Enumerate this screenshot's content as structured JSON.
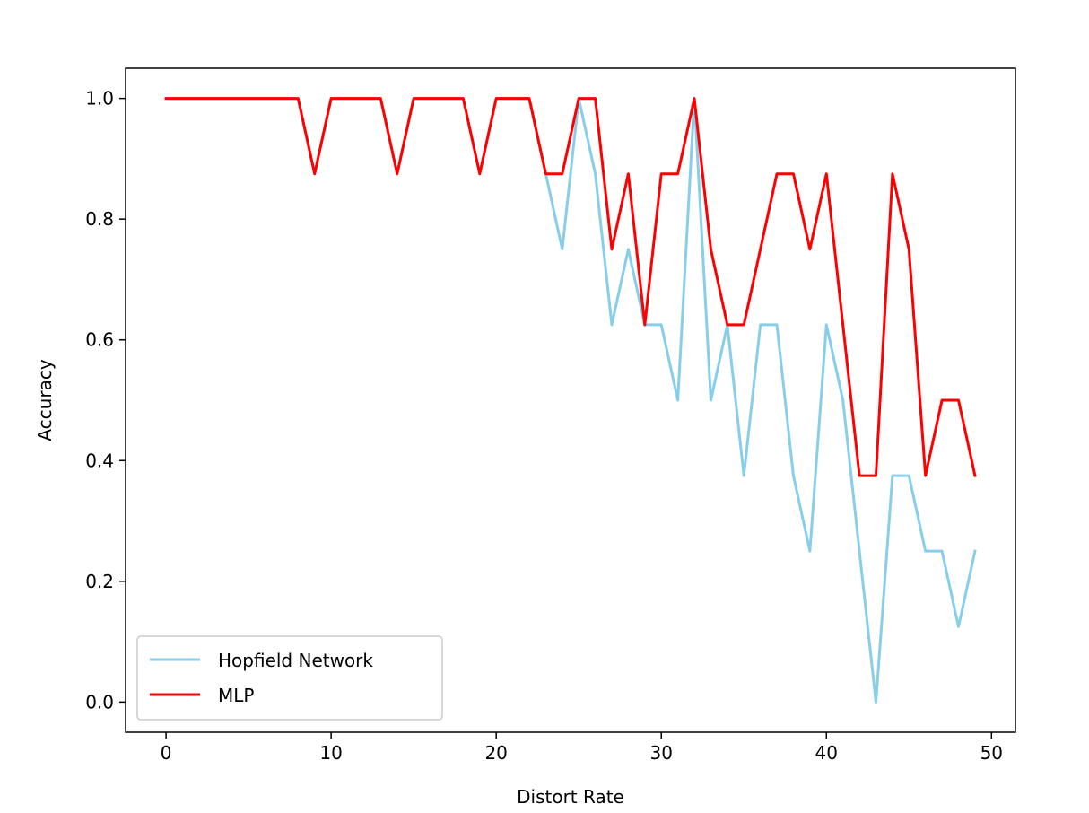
{
  "chart_data": {
    "type": "line",
    "xlabel": "Distort Rate",
    "ylabel": "Accuracy",
    "xlim": [
      -2.45,
      51.45
    ],
    "ylim": [
      -0.05,
      1.05
    ],
    "xticks": [
      0,
      10,
      20,
      30,
      40,
      50
    ],
    "yticks": [
      0.0,
      0.2,
      0.4,
      0.6,
      0.8,
      1.0
    ],
    "xtick_labels": [
      "0",
      "10",
      "20",
      "30",
      "40",
      "50"
    ],
    "ytick_labels": [
      "0.0",
      "0.2",
      "0.4",
      "0.6",
      "0.8",
      "1.0"
    ],
    "grid": false,
    "legend_position": "lower-left",
    "x": [
      0,
      1,
      2,
      3,
      4,
      5,
      6,
      7,
      8,
      9,
      10,
      11,
      12,
      13,
      14,
      15,
      16,
      17,
      18,
      19,
      20,
      21,
      22,
      23,
      24,
      25,
      26,
      27,
      28,
      29,
      30,
      31,
      32,
      33,
      34,
      35,
      36,
      37,
      38,
      39,
      40,
      41,
      42,
      43,
      44,
      45,
      46,
      47,
      48,
      49
    ],
    "series": [
      {
        "name": "Hopfield Network",
        "color": "#87CEEB",
        "values": [
          1.0,
          1.0,
          1.0,
          1.0,
          1.0,
          1.0,
          1.0,
          1.0,
          1.0,
          0.875,
          1.0,
          1.0,
          1.0,
          1.0,
          0.875,
          1.0,
          1.0,
          1.0,
          1.0,
          0.875,
          1.0,
          1.0,
          1.0,
          0.875,
          0.75,
          1.0,
          0.875,
          0.625,
          0.75,
          0.625,
          0.625,
          0.5,
          1.0,
          0.5,
          0.625,
          0.375,
          0.625,
          0.625,
          0.375,
          0.25,
          0.625,
          0.5,
          0.25,
          0.0,
          0.375,
          0.375,
          0.25,
          0.25,
          0.125,
          0.25
        ]
      },
      {
        "name": "MLP",
        "color": "#FF0000",
        "values": [
          1.0,
          1.0,
          1.0,
          1.0,
          1.0,
          1.0,
          1.0,
          1.0,
          1.0,
          0.875,
          1.0,
          1.0,
          1.0,
          1.0,
          0.875,
          1.0,
          1.0,
          1.0,
          1.0,
          0.875,
          1.0,
          1.0,
          1.0,
          0.875,
          0.875,
          1.0,
          1.0,
          0.75,
          0.875,
          0.625,
          0.875,
          0.875,
          1.0,
          0.75,
          0.625,
          0.625,
          0.75,
          0.875,
          0.875,
          0.75,
          0.875,
          0.625,
          0.375,
          0.375,
          0.875,
          0.75,
          0.375,
          0.5,
          0.5,
          0.375
        ]
      }
    ]
  }
}
